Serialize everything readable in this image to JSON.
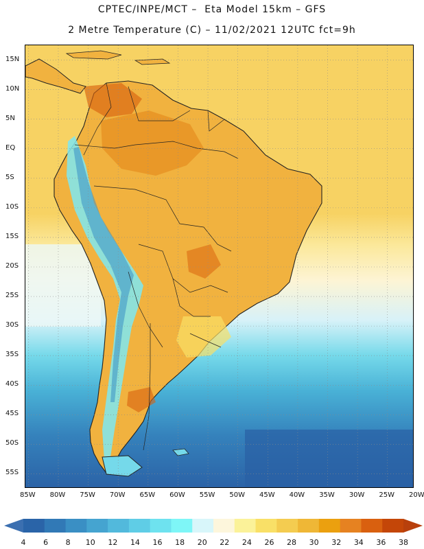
{
  "title": {
    "line1": "CPTEC/INPE/MCT –  Eta Model 15km – GFS",
    "line2": "2 Metre Temperature (C) – 11/02/2021 12UTC fct=9h"
  },
  "map": {
    "lat_ticks": [
      "15N",
      "10N",
      "5N",
      "EQ",
      "5S",
      "10S",
      "15S",
      "20S",
      "25S",
      "30S",
      "35S",
      "40S",
      "45S",
      "50S",
      "55S"
    ],
    "lon_ticks": [
      "85W",
      "80W",
      "75W",
      "70W",
      "65W",
      "60W",
      "55W",
      "50W",
      "45W",
      "40W",
      "35W",
      "30W",
      "25W",
      "20W"
    ],
    "lat_range": [
      -57.5,
      17.5
    ],
    "lon_range": [
      -85.5,
      -20.5
    ]
  },
  "colorbar": {
    "labels": [
      "4",
      "6",
      "8",
      "10",
      "12",
      "14",
      "16",
      "18",
      "20",
      "22",
      "24",
      "26",
      "28",
      "30",
      "32",
      "34",
      "36",
      "38"
    ],
    "colors": [
      "#2a64a8",
      "#3179b6",
      "#3a8fc4",
      "#45a4d0",
      "#52b9dc",
      "#5fcde6",
      "#6ee2ef",
      "#7ef6f7",
      "#d8f6fa",
      "#fdf6dc",
      "#fbf299",
      "#f9e067",
      "#f4cc50",
      "#efb736",
      "#eba00f",
      "#e68221",
      "#d9600f",
      "#c44608"
    ],
    "under_color": "#3b6fb0",
    "over_color": "#b8400c"
  }
}
